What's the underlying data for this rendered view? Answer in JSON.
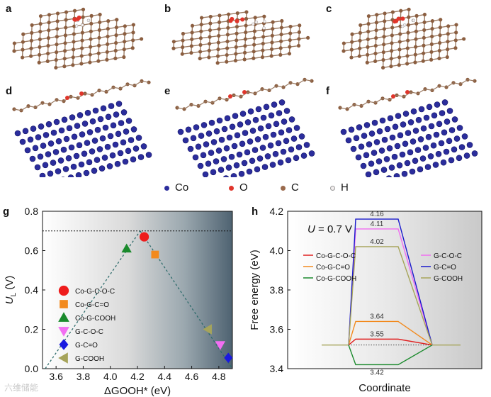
{
  "panel_labels": [
    "a",
    "b",
    "c",
    "d",
    "e",
    "f",
    "g",
    "h"
  ],
  "legend": [
    {
      "symbol": "Co",
      "color": "#2b2d9c"
    },
    {
      "symbol": "O",
      "color": "#e0352b"
    },
    {
      "symbol": "C",
      "color": "#9a6a4c"
    },
    {
      "symbol": "H",
      "color": "#f2eeee"
    }
  ],
  "watermark": "六维储能",
  "chart_data": [
    {
      "type": "scatter",
      "panel": "g",
      "xlabel": "ΔGOOH* (eV)",
      "ylabel": "U_L (V)",
      "ylabel_main": "U",
      "ylabel_sub": "L",
      "ylabel_unit": " (V)",
      "xlim": [
        3.5,
        4.9
      ],
      "ylim": [
        0.0,
        0.8
      ],
      "xticks": [
        "3.6",
        "3.8",
        "4.0",
        "4.2",
        "4.4",
        "4.6",
        "4.8"
      ],
      "yticks": [
        "0.0",
        "0.2",
        "0.4",
        "0.6",
        "0.8"
      ],
      "reference_line_y": 0.7,
      "volcano_apex": [
        4.22,
        0.7
      ],
      "volcano_left_end": [
        3.52,
        0.0
      ],
      "volcano_right_end": [
        4.92,
        0.0
      ],
      "series": [
        {
          "name": "Co-G-C-O-C",
          "x": 4.25,
          "y": 0.67,
          "color": "#ee1c1c",
          "marker": "circle"
        },
        {
          "name": "Co-G-C=O",
          "x": 4.33,
          "y": 0.58,
          "color": "#f28a1e",
          "marker": "square"
        },
        {
          "name": "Co-G-COOH",
          "x": 4.12,
          "y": 0.61,
          "color": "#1a8a2c",
          "marker": "triangle-up"
        },
        {
          "name": "G-C-O-C",
          "x": 4.81,
          "y": 0.12,
          "color": "#f26ef2",
          "marker": "triangle-down"
        },
        {
          "name": "G-C=O",
          "x": 4.87,
          "y": 0.055,
          "color": "#1a1ae0",
          "marker": "diamond"
        },
        {
          "name": "G-COOH",
          "x": 4.72,
          "y": 0.2,
          "color": "#a6a45a",
          "marker": "triangle-left"
        }
      ]
    },
    {
      "type": "line",
      "panel": "h",
      "xlabel": "Coordinate",
      "ylabel": "Free energy (eV)",
      "annotation_var": "U",
      "annotation_rest": " = 0.7 V",
      "ylim": [
        3.4,
        4.2
      ],
      "yticks": [
        "3.4",
        "3.6",
        "3.8",
        "4.0",
        "4.2"
      ],
      "baseline": 3.52,
      "series": [
        {
          "name": "Co-G-C-O-C",
          "peak": 3.55,
          "label": "3.55",
          "color": "#e02020"
        },
        {
          "name": "Co-G-C=O",
          "peak": 3.64,
          "label": "3.64",
          "color": "#f28a1e"
        },
        {
          "name": "Co-G-COOH",
          "peak": 3.42,
          "label": "3.42",
          "color": "#1a8a2c"
        },
        {
          "name": "G-C-O-C",
          "peak": 4.11,
          "label": "4.11",
          "color": "#f06ef0"
        },
        {
          "name": "G-C=O",
          "peak": 4.16,
          "label": "4.16",
          "color": "#1a1acc"
        },
        {
          "name": "G-COOH",
          "peak": 4.02,
          "label": "4.02",
          "color": "#a6a45a"
        }
      ]
    }
  ]
}
